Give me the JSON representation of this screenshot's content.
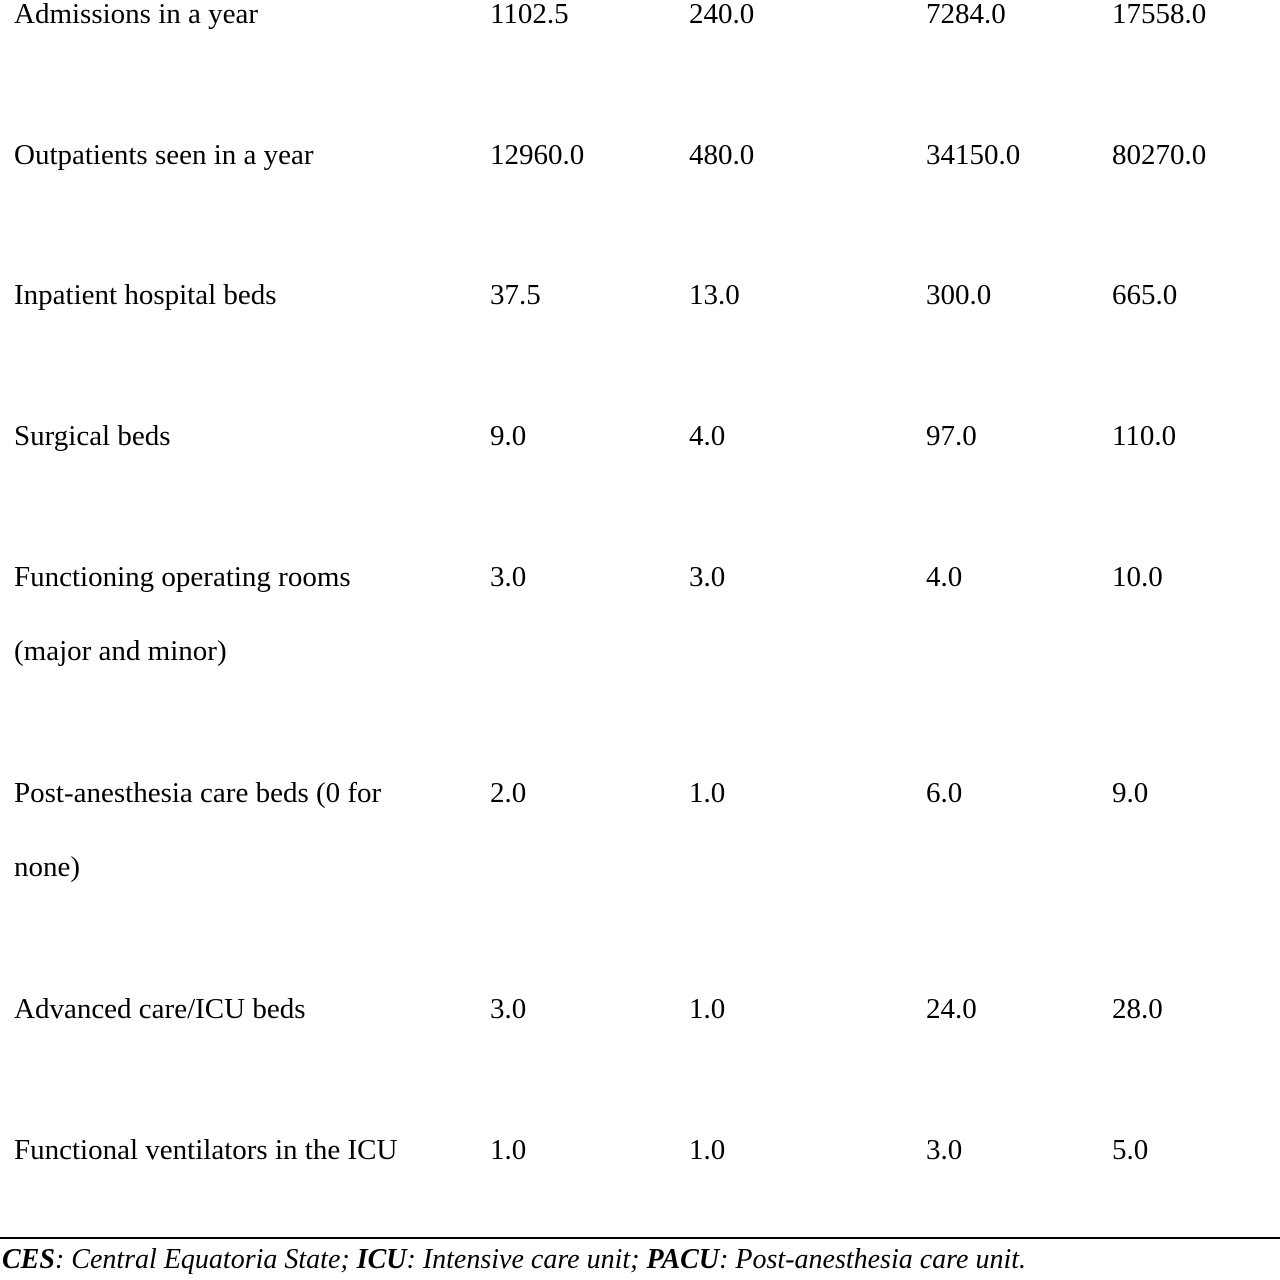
{
  "rows": [
    {
      "label": "Admissions in a year",
      "v1": "1102.5",
      "v2": "240.0",
      "v3": "7284.0",
      "v4": "17558.0"
    },
    {
      "label": "Outpatients seen in a year",
      "v1": "12960.0",
      "v2": "480.0",
      "v3": "34150.0",
      "v4": "80270.0"
    },
    {
      "label": "Inpatient hospital beds",
      "v1": "37.5",
      "v2": "13.0",
      "v3": "300.0",
      "v4": "665.0"
    },
    {
      "label": "Surgical beds",
      "v1": "9.0",
      "v2": "4.0",
      "v3": "97.0",
      "v4": "110.0"
    },
    {
      "label": "Functioning operating rooms (major and minor)",
      "v1": "3.0",
      "v2": "3.0",
      "v3": "4.0",
      "v4": "10.0"
    },
    {
      "label": "Post-anesthesia care beds (0 for none)",
      "v1": "2.0",
      "v2": "1.0",
      "v3": "6.0",
      "v4": "9.0"
    },
    {
      "label": "Advanced care/ICU beds",
      "v1": "3.0",
      "v2": "1.0",
      "v3": "24.0",
      "v4": "28.0"
    },
    {
      "label": "Functional ventilators in the ICU",
      "v1": "1.0",
      "v2": "1.0",
      "v3": "3.0",
      "v4": "5.0"
    }
  ],
  "footnote": {
    "abbr1": "CES",
    "def1": ": Central Equatoria State; ",
    "abbr2": "ICU",
    "def2": ": Intensive care unit; ",
    "abbr3": "PACU",
    "def3": ": Post-anesthesia care unit."
  }
}
